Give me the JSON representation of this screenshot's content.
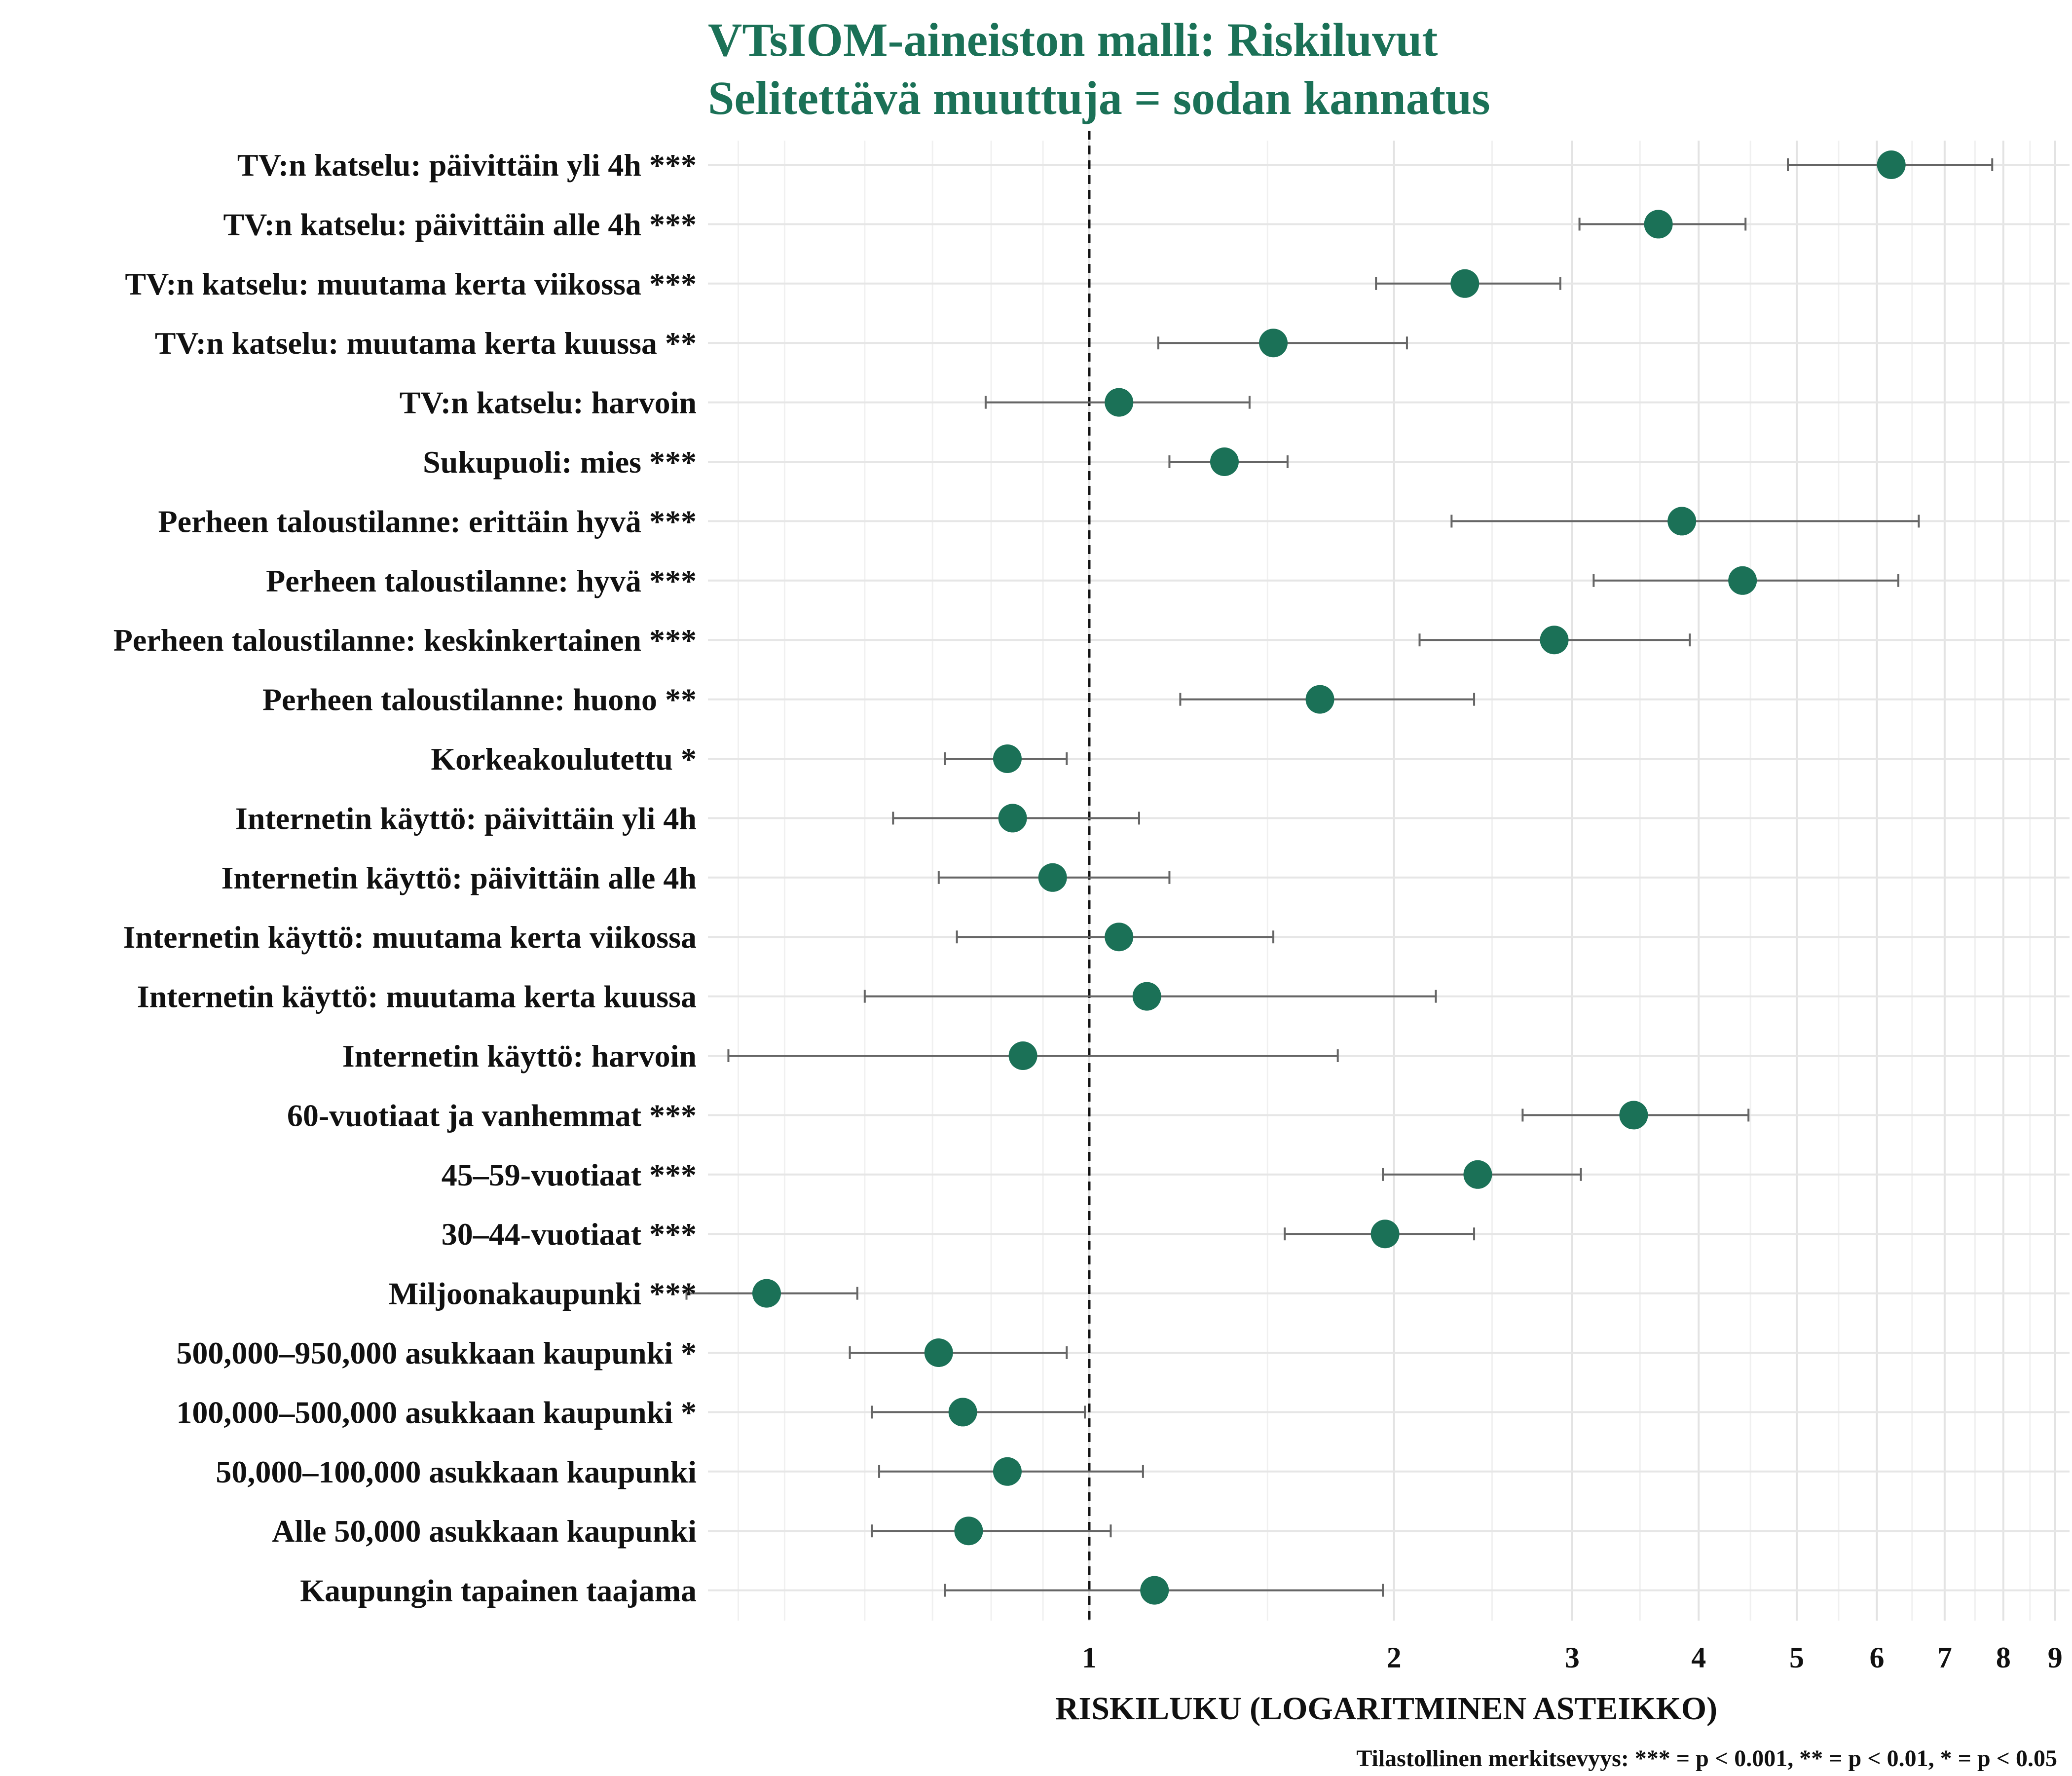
{
  "chart_data": {
    "type": "scatter",
    "title": "VTsIOM-aineiston malli: Riskiluvut",
    "subtitle": "Selitettävä muuttuja = sodan kannatus",
    "xlabel": "RISKILUKU (LOGARITMINEN ASTEIKKO)",
    "caption": "Tilastollinen merkitsevyys: *** = p < 0.001, ** = p < 0.01, * = p < 0.05",
    "x_scale": "log",
    "xlim": [
      0.42,
      9.3
    ],
    "x_ticks": [
      1,
      2,
      3,
      4,
      5,
      6,
      7,
      8,
      9
    ],
    "x_tick_labels": [
      "1",
      "2",
      "3",
      "4",
      "5",
      "6",
      "7",
      "8",
      "9"
    ],
    "reference_line": 1,
    "grid": true,
    "point_color": "#1b7157",
    "items": [
      {
        "label": "TV:n katselu: päivittäin yli 4h ***",
        "estimate": 6.2,
        "lower": 4.9,
        "upper": 7.8
      },
      {
        "label": "TV:n katselu: päivittäin alle 4h ***",
        "estimate": 3.65,
        "lower": 3.05,
        "upper": 4.45
      },
      {
        "label": "TV:n katselu: muutama kerta viikossa ***",
        "estimate": 2.35,
        "lower": 1.92,
        "upper": 2.92
      },
      {
        "label": "TV:n katselu: muutama kerta kuussa **",
        "estimate": 1.52,
        "lower": 1.17,
        "upper": 2.06
      },
      {
        "label": "TV:n katselu: harvoin",
        "estimate": 1.07,
        "lower": 0.79,
        "upper": 1.44
      },
      {
        "label": "Sukupuoli: mies ***",
        "estimate": 1.36,
        "lower": 1.2,
        "upper": 1.57
      },
      {
        "label": "Perheen taloustilanne: erittäin hyvä ***",
        "estimate": 3.85,
        "lower": 2.28,
        "upper": 6.6
      },
      {
        "label": "Perheen taloustilanne: hyvä ***",
        "estimate": 4.42,
        "lower": 3.15,
        "upper": 6.3
      },
      {
        "label": "Perheen taloustilanne: keskinkertainen ***",
        "estimate": 2.88,
        "lower": 2.12,
        "upper": 3.92
      },
      {
        "label": "Perheen taloustilanne: huono **",
        "estimate": 1.69,
        "lower": 1.23,
        "upper": 2.4
      },
      {
        "label": "Korkeakoulutettu *",
        "estimate": 0.83,
        "lower": 0.72,
        "upper": 0.95
      },
      {
        "label": "Internetin käyttö: päivittäin yli 4h",
        "estimate": 0.84,
        "lower": 0.64,
        "upper": 1.12
      },
      {
        "label": "Internetin käyttö: päivittäin alle 4h",
        "estimate": 0.92,
        "lower": 0.71,
        "upper": 1.2
      },
      {
        "label": "Internetin käyttö: muutama kerta viikossa",
        "estimate": 1.07,
        "lower": 0.74,
        "upper": 1.52
      },
      {
        "label": "Internetin käyttö: muutama kerta kuussa",
        "estimate": 1.14,
        "lower": 0.6,
        "upper": 2.2
      },
      {
        "label": "Internetin käyttö: harvoin",
        "estimate": 0.86,
        "lower": 0.44,
        "upper": 1.76
      },
      {
        "label": "60-vuotiaat ja vanhemmat ***",
        "estimate": 3.45,
        "lower": 2.68,
        "upper": 4.48
      },
      {
        "label": "45–59-vuotiaat ***",
        "estimate": 2.42,
        "lower": 1.95,
        "upper": 3.06
      },
      {
        "label": "30–44-vuotiaat ***",
        "estimate": 1.96,
        "lower": 1.56,
        "upper": 2.4
      },
      {
        "label": "Miljoonakaupunki ***",
        "estimate": 0.48,
        "lower": 0.4,
        "upper": 0.59
      },
      {
        "label": "500,000–950,000 asukkaan kaupunki *",
        "estimate": 0.71,
        "lower": 0.58,
        "upper": 0.95
      },
      {
        "label": "100,000–500,000 asukkaan kaupunki *",
        "estimate": 0.75,
        "lower": 0.61,
        "upper": 0.99
      },
      {
        "label": "50,000–100,000 asukkaan kaupunki",
        "estimate": 0.83,
        "lower": 0.62,
        "upper": 1.13
      },
      {
        "label": "Alle 50,000 asukkaan kaupunki",
        "estimate": 0.76,
        "lower": 0.61,
        "upper": 1.05
      },
      {
        "label": "Kaupungin tapainen taajama",
        "estimate": 1.16,
        "lower": 0.72,
        "upper": 1.95
      }
    ]
  }
}
